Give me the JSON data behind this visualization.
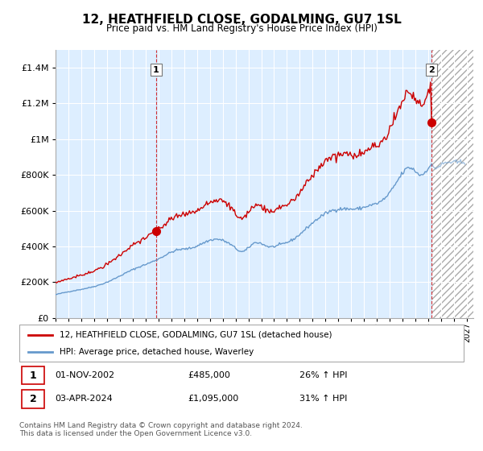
{
  "title": "12, HEATHFIELD CLOSE, GODALMING, GU7 1SL",
  "subtitle": "Price paid vs. HM Land Registry's House Price Index (HPI)",
  "legend_line1": "12, HEATHFIELD CLOSE, GODALMING, GU7 1SL (detached house)",
  "legend_line2": "HPI: Average price, detached house, Waverley",
  "transaction1_date": "01-NOV-2002",
  "transaction1_price": "£485,000",
  "transaction1_hpi": "26% ↑ HPI",
  "transaction2_date": "03-APR-2024",
  "transaction2_price": "£1,095,000",
  "transaction2_hpi": "31% ↑ HPI",
  "footer": "Contains HM Land Registry data © Crown copyright and database right 2024.\nThis data is licensed under the Open Government Licence v3.0.",
  "red_color": "#cc0000",
  "blue_color": "#6699cc",
  "blue_fill_color": "#ddeeff",
  "grid_color": "#cccccc",
  "ylim": [
    0,
    1500000
  ],
  "yticks": [
    0,
    200000,
    400000,
    600000,
    800000,
    1000000,
    1200000,
    1400000
  ],
  "xlim_start": 1995.0,
  "xlim_end": 2027.5,
  "transaction1_x": 2002.83,
  "transaction1_y": 485000,
  "transaction2_x": 2024.25,
  "transaction2_y": 1095000,
  "hatch_start": 2024.33
}
